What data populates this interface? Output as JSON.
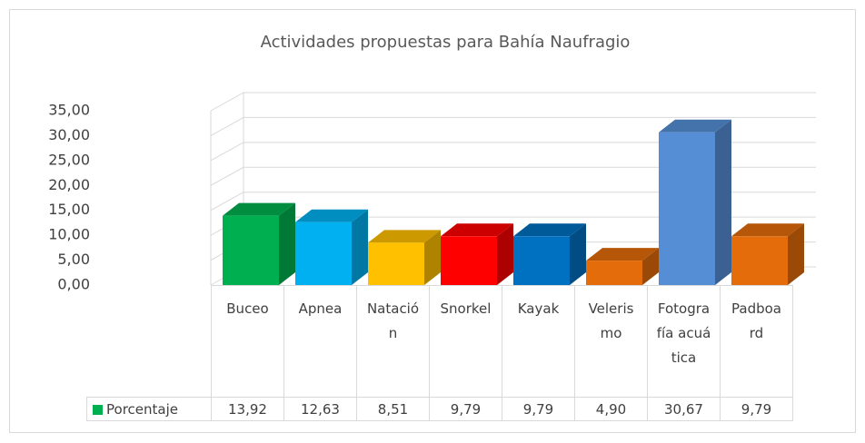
{
  "chart_data": {
    "type": "bar3d",
    "title": "Actividades propuestas para Bahía Naufragio",
    "categories": [
      "Buceo",
      "Apnea",
      "Natación",
      "Snorkel",
      "Kayak",
      "Velerismo",
      "Fotografía acuática",
      "Padboard"
    ],
    "series": [
      {
        "name": "Porcentaje",
        "color": "#00b050",
        "colors": [
          "#00b050",
          "#00b0f0",
          "#ffc000",
          "#ff0000",
          "#0070c0",
          "#e46c0a",
          "#558ed5",
          "#e46c0a"
        ],
        "values": [
          13.92,
          12.63,
          8.51,
          9.79,
          9.79,
          4.9,
          30.67,
          9.79
        ],
        "value_labels": [
          "13,92",
          "12,63",
          "8,51",
          "9,79",
          "9,79",
          "4,90",
          "30,67",
          "9,79"
        ]
      }
    ],
    "ylim": [
      0,
      35
    ],
    "yticks": [
      {
        "value": 0,
        "label": "0,00"
      },
      {
        "value": 5,
        "label": "5,00"
      },
      {
        "value": 10,
        "label": "10,00"
      },
      {
        "value": 15,
        "label": "15,00"
      },
      {
        "value": 20,
        "label": "20,00"
      },
      {
        "value": 25,
        "label": "25,00"
      },
      {
        "value": 30,
        "label": "30,00"
      },
      {
        "value": 35,
        "label": "35,00"
      }
    ],
    "grid": true,
    "data_table": true
  }
}
